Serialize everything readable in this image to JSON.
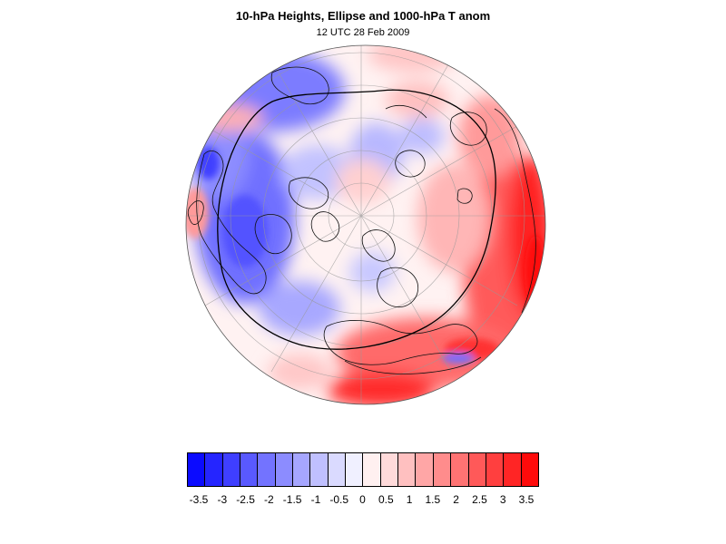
{
  "map": {
    "title": "10-hPa Heights, Ellipse and 1000-hPa T anom",
    "subtitle": "12 UTC 28 Feb 2009",
    "projection": "orthographic-north-polar",
    "field": "1000-hPa temperature anomaly",
    "overlays": [
      "coastlines",
      "lat-lon-grid",
      "ellipse-contour"
    ]
  },
  "colorbar": {
    "colors": [
      "#0b0bff",
      "#2525ff",
      "#3f3fff",
      "#5959ff",
      "#7373ff",
      "#8c8cff",
      "#a6a6ff",
      "#c0c0ff",
      "#dadaff",
      "#f0f0ff",
      "#fff0f0",
      "#ffdada",
      "#ffc0c0",
      "#ffa6a6",
      "#ff8c8c",
      "#ff7373",
      "#ff5959",
      "#ff3f3f",
      "#ff2525",
      "#ff0b0b"
    ],
    "labels": [
      "-3.5",
      "-3",
      "-2.5",
      "-2",
      "-1.5",
      "-1",
      "-0.5",
      "0",
      "0.5",
      "1",
      "1.5",
      "2",
      "2.5",
      "3",
      "3.5"
    ]
  }
}
